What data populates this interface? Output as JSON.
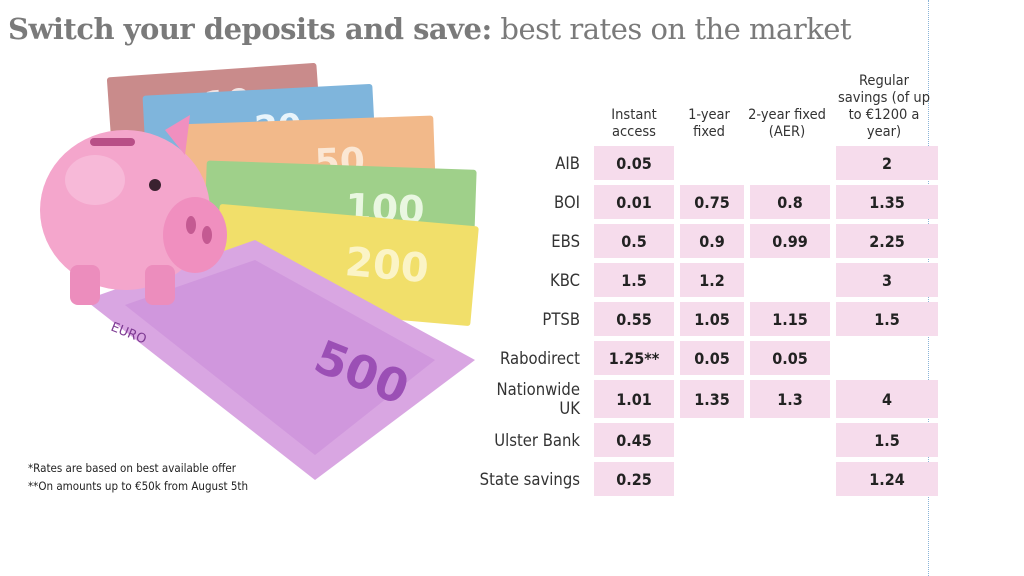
{
  "title": {
    "bold": "Switch your deposits and save:",
    "rest": " best rates on the market"
  },
  "table": {
    "headers": [
      "Instant access",
      "1-year fixed",
      "2-year fixed (AER)",
      "Regular savings (of up to €1200 a year)"
    ],
    "rows": [
      {
        "bank": "AIB",
        "values": [
          "0.05",
          "",
          "",
          "2"
        ]
      },
      {
        "bank": "BOI",
        "values": [
          "0.01",
          "0.75",
          "0.8",
          "1.35"
        ]
      },
      {
        "bank": "EBS",
        "values": [
          "0.5",
          "0.9",
          "0.99",
          "2.25"
        ]
      },
      {
        "bank": "KBC",
        "values": [
          "1.5",
          "1.2",
          "",
          "3"
        ]
      },
      {
        "bank": "PTSB",
        "values": [
          "0.55",
          "1.05",
          "1.15",
          "1.5"
        ]
      },
      {
        "bank": "Rabodirect",
        "values": [
          "1.25**",
          "0.05",
          "0.05",
          ""
        ]
      },
      {
        "bank": "Nationwide UK",
        "values": [
          "1.01",
          "1.35",
          "1.3",
          "4"
        ]
      },
      {
        "bank": "Ulster Bank",
        "values": [
          "0.45",
          "",
          "",
          "1.5"
        ]
      },
      {
        "bank": "State savings",
        "values": [
          "0.25",
          "",
          "",
          "1.24"
        ]
      }
    ]
  },
  "notes": [
    "*Rates are based on best available offer",
    "**On amounts up to €50k from August 5th"
  ],
  "illustration": {
    "banknotes": [
      "10",
      "20",
      "50",
      "100",
      "200",
      "500"
    ],
    "note_text": "EURO"
  },
  "colors": {
    "cell_fill": "#f6dcec",
    "pig": "#f4a6cc",
    "title": "#7a7a7a"
  },
  "chart_data": {
    "type": "table",
    "title": "Switch your deposits and save: best rates on the market",
    "columns": [
      "Instant access",
      "1-year fixed",
      "2-year fixed (AER)",
      "Regular savings (of up to €1200 a year)"
    ],
    "rows": [
      "AIB",
      "BOI",
      "EBS",
      "KBC",
      "PTSB",
      "Rabodirect",
      "Nationwide UK",
      "Ulster Bank",
      "State savings"
    ],
    "values": [
      [
        0.05,
        null,
        null,
        2
      ],
      [
        0.01,
        0.75,
        0.8,
        1.35
      ],
      [
        0.5,
        0.9,
        0.99,
        2.25
      ],
      [
        1.5,
        1.2,
        null,
        3
      ],
      [
        0.55,
        1.05,
        1.15,
        1.5
      ],
      [
        1.25,
        0.05,
        0.05,
        null
      ],
      [
        1.01,
        1.35,
        1.3,
        4
      ],
      [
        0.45,
        null,
        null,
        1.5
      ],
      [
        0.25,
        null,
        null,
        1.24
      ]
    ]
  }
}
